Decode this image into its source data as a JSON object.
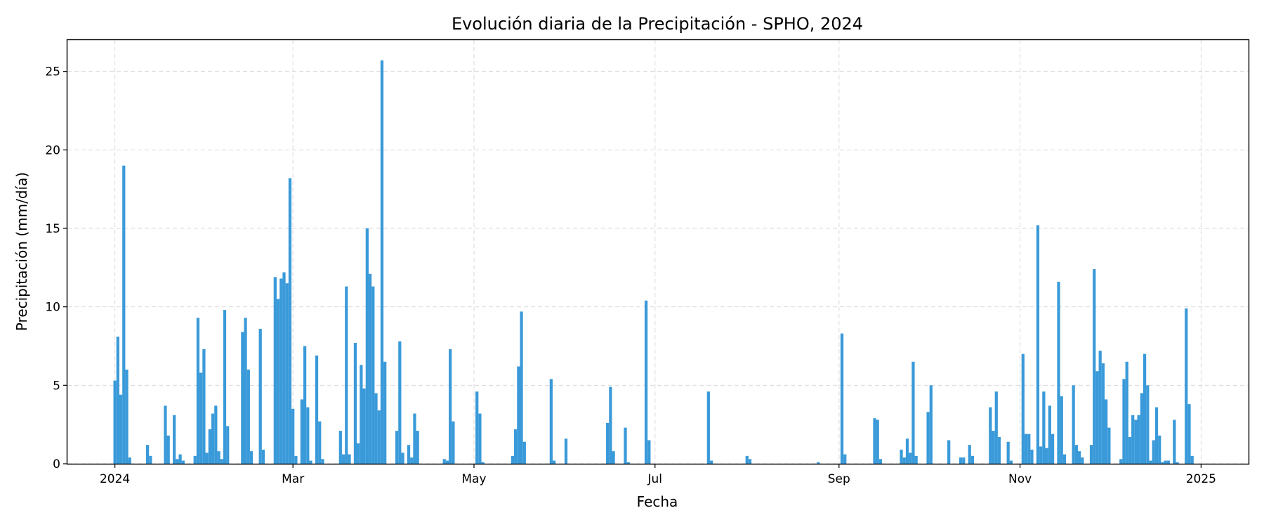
{
  "chart_data": {
    "type": "bar",
    "title": "Evolución diaria de la Precipitación - SPHO, 2024",
    "xlabel": "Fecha",
    "ylabel": "Precipitación (mm/día)",
    "xlim": [
      "2023-12-16",
      "2025-01-17"
    ],
    "ylim": [
      0,
      27
    ],
    "grid": true,
    "bar_color": "#3a9ad9",
    "x_ticks": [
      {
        "date": "2024-01-01",
        "label": "2024"
      },
      {
        "date": "2024-03-01",
        "label": "Mar"
      },
      {
        "date": "2024-05-01",
        "label": "May"
      },
      {
        "date": "2024-07-01",
        "label": "Jul"
      },
      {
        "date": "2024-09-01",
        "label": "Sep"
      },
      {
        "date": "2024-11-01",
        "label": "Nov"
      },
      {
        "date": "2025-01-01",
        "label": "2025"
      }
    ],
    "y_ticks": [
      0,
      5,
      10,
      15,
      20,
      25
    ],
    "points": [
      [
        "2024-01-01",
        5.3
      ],
      [
        "2024-01-02",
        8.1
      ],
      [
        "2024-01-03",
        4.4
      ],
      [
        "2024-01-04",
        19.0
      ],
      [
        "2024-01-05",
        6.0
      ],
      [
        "2024-01-06",
        0.4
      ],
      [
        "2024-01-12",
        1.2
      ],
      [
        "2024-01-13",
        0.5
      ],
      [
        "2024-01-18",
        3.7
      ],
      [
        "2024-01-19",
        1.8
      ],
      [
        "2024-01-21",
        3.1
      ],
      [
        "2024-01-22",
        0.3
      ],
      [
        "2024-01-23",
        0.6
      ],
      [
        "2024-01-24",
        0.2
      ],
      [
        "2024-01-28",
        0.5
      ],
      [
        "2024-01-29",
        9.3
      ],
      [
        "2024-01-30",
        5.8
      ],
      [
        "2024-01-31",
        7.3
      ],
      [
        "2024-02-01",
        0.7
      ],
      [
        "2024-02-02",
        2.2
      ],
      [
        "2024-02-03",
        3.2
      ],
      [
        "2024-02-04",
        3.7
      ],
      [
        "2024-02-05",
        0.8
      ],
      [
        "2024-02-06",
        0.3
      ],
      [
        "2024-02-07",
        9.8
      ],
      [
        "2024-02-08",
        2.4
      ],
      [
        "2024-02-13",
        8.4
      ],
      [
        "2024-02-14",
        9.3
      ],
      [
        "2024-02-15",
        6.0
      ],
      [
        "2024-02-16",
        0.8
      ],
      [
        "2024-02-19",
        8.6
      ],
      [
        "2024-02-20",
        0.9
      ],
      [
        "2024-02-24",
        11.9
      ],
      [
        "2024-02-25",
        10.5
      ],
      [
        "2024-02-26",
        11.8
      ],
      [
        "2024-02-27",
        12.2
      ],
      [
        "2024-02-28",
        11.5
      ],
      [
        "2024-02-29",
        18.2
      ],
      [
        "2024-03-01",
        3.5
      ],
      [
        "2024-03-02",
        0.5
      ],
      [
        "2024-03-04",
        4.1
      ],
      [
        "2024-03-05",
        7.5
      ],
      [
        "2024-03-06",
        3.6
      ],
      [
        "2024-03-07",
        0.2
      ],
      [
        "2024-03-09",
        6.9
      ],
      [
        "2024-03-10",
        2.7
      ],
      [
        "2024-03-11",
        0.3
      ],
      [
        "2024-03-17",
        2.1
      ],
      [
        "2024-03-18",
        0.6
      ],
      [
        "2024-03-19",
        11.3
      ],
      [
        "2024-03-20",
        0.6
      ],
      [
        "2024-03-22",
        7.7
      ],
      [
        "2024-03-23",
        1.3
      ],
      [
        "2024-03-24",
        6.3
      ],
      [
        "2024-03-25",
        4.8
      ],
      [
        "2024-03-26",
        15.0
      ],
      [
        "2024-03-27",
        12.1
      ],
      [
        "2024-03-28",
        11.3
      ],
      [
        "2024-03-29",
        4.5
      ],
      [
        "2024-03-30",
        3.4
      ],
      [
        "2024-03-31",
        25.7
      ],
      [
        "2024-04-01",
        6.5
      ],
      [
        "2024-04-05",
        2.1
      ],
      [
        "2024-04-06",
        7.8
      ],
      [
        "2024-04-07",
        0.7
      ],
      [
        "2024-04-09",
        1.2
      ],
      [
        "2024-04-10",
        0.4
      ],
      [
        "2024-04-11",
        3.2
      ],
      [
        "2024-04-12",
        2.1
      ],
      [
        "2024-04-21",
        0.3
      ],
      [
        "2024-04-22",
        0.2
      ],
      [
        "2024-04-23",
        7.3
      ],
      [
        "2024-04-24",
        2.7
      ],
      [
        "2024-05-02",
        4.6
      ],
      [
        "2024-05-03",
        3.2
      ],
      [
        "2024-05-04",
        0.1
      ],
      [
        "2024-05-14",
        0.5
      ],
      [
        "2024-05-15",
        2.2
      ],
      [
        "2024-05-16",
        6.2
      ],
      [
        "2024-05-17",
        9.7
      ],
      [
        "2024-05-18",
        1.4
      ],
      [
        "2024-05-27",
        5.4
      ],
      [
        "2024-05-28",
        0.2
      ],
      [
        "2024-06-01",
        1.6
      ],
      [
        "2024-06-15",
        2.6
      ],
      [
        "2024-06-16",
        4.9
      ],
      [
        "2024-06-17",
        0.8
      ],
      [
        "2024-06-21",
        2.3
      ],
      [
        "2024-06-22",
        0.1
      ],
      [
        "2024-06-28",
        10.4
      ],
      [
        "2024-06-29",
        1.5
      ],
      [
        "2024-07-19",
        4.6
      ],
      [
        "2024-07-20",
        0.2
      ],
      [
        "2024-08-01",
        0.5
      ],
      [
        "2024-08-02",
        0.3
      ],
      [
        "2024-08-25",
        0.1
      ],
      [
        "2024-09-02",
        8.3
      ],
      [
        "2024-09-03",
        0.6
      ],
      [
        "2024-09-13",
        2.9
      ],
      [
        "2024-09-14",
        2.8
      ],
      [
        "2024-09-15",
        0.3
      ],
      [
        "2024-09-22",
        0.9
      ],
      [
        "2024-09-23",
        0.4
      ],
      [
        "2024-09-24",
        1.6
      ],
      [
        "2024-09-25",
        0.7
      ],
      [
        "2024-09-26",
        6.5
      ],
      [
        "2024-09-27",
        0.5
      ],
      [
        "2024-10-01",
        3.3
      ],
      [
        "2024-10-02",
        5.0
      ],
      [
        "2024-10-08",
        1.5
      ],
      [
        "2024-10-12",
        0.4
      ],
      [
        "2024-10-13",
        0.4
      ],
      [
        "2024-10-15",
        1.2
      ],
      [
        "2024-10-16",
        0.5
      ],
      [
        "2024-10-22",
        3.6
      ],
      [
        "2024-10-23",
        2.1
      ],
      [
        "2024-10-24",
        4.6
      ],
      [
        "2024-10-25",
        1.7
      ],
      [
        "2024-10-28",
        1.4
      ],
      [
        "2024-10-29",
        0.2
      ],
      [
        "2024-11-02",
        7.0
      ],
      [
        "2024-11-03",
        1.9
      ],
      [
        "2024-11-04",
        1.9
      ],
      [
        "2024-11-05",
        0.9
      ],
      [
        "2024-11-07",
        15.2
      ],
      [
        "2024-11-08",
        1.1
      ],
      [
        "2024-11-09",
        4.6
      ],
      [
        "2024-11-10",
        1.0
      ],
      [
        "2024-11-11",
        3.7
      ],
      [
        "2024-11-12",
        1.9
      ],
      [
        "2024-11-14",
        11.6
      ],
      [
        "2024-11-15",
        4.3
      ],
      [
        "2024-11-16",
        0.6
      ],
      [
        "2024-11-19",
        5.0
      ],
      [
        "2024-11-20",
        1.2
      ],
      [
        "2024-11-21",
        0.8
      ],
      [
        "2024-11-22",
        0.4
      ],
      [
        "2024-11-25",
        1.2
      ],
      [
        "2024-11-26",
        12.4
      ],
      [
        "2024-11-27",
        5.9
      ],
      [
        "2024-11-28",
        7.2
      ],
      [
        "2024-11-29",
        6.4
      ],
      [
        "2024-11-30",
        4.1
      ],
      [
        "2024-12-01",
        2.3
      ],
      [
        "2024-12-05",
        0.3
      ],
      [
        "2024-12-06",
        5.4
      ],
      [
        "2024-12-07",
        6.5
      ],
      [
        "2024-12-08",
        1.7
      ],
      [
        "2024-12-09",
        3.1
      ],
      [
        "2024-12-10",
        2.8
      ],
      [
        "2024-12-11",
        3.1
      ],
      [
        "2024-12-12",
        4.5
      ],
      [
        "2024-12-13",
        7.0
      ],
      [
        "2024-12-14",
        5.0
      ],
      [
        "2024-12-15",
        0.2
      ],
      [
        "2024-12-16",
        1.5
      ],
      [
        "2024-12-17",
        3.6
      ],
      [
        "2024-12-18",
        1.8
      ],
      [
        "2024-12-19",
        0.1
      ],
      [
        "2024-12-20",
        0.2
      ],
      [
        "2024-12-21",
        0.2
      ],
      [
        "2024-12-23",
        2.8
      ],
      [
        "2024-12-24",
        0.1
      ],
      [
        "2024-12-27",
        9.9
      ],
      [
        "2024-12-28",
        3.8
      ],
      [
        "2024-12-29",
        0.5
      ]
    ]
  }
}
